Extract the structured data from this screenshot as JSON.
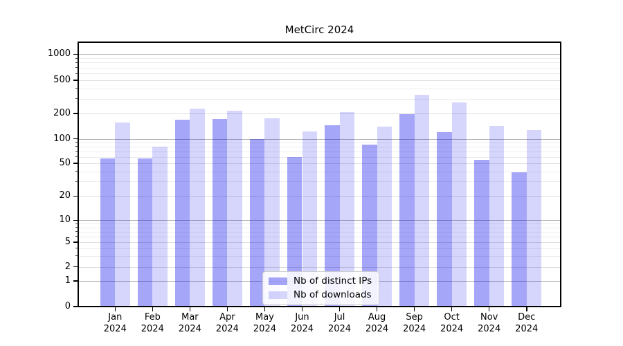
{
  "window": {
    "title": "MetCirc 2024"
  },
  "chart_data": {
    "type": "bar",
    "title": "MetCirc 2024",
    "categories": [
      "Jan 2024",
      "Feb 2024",
      "Mar 2024",
      "Apr 2024",
      "May 2024",
      "Jun 2024",
      "Jul 2024",
      "Aug 2024",
      "Sep 2024",
      "Oct 2024",
      "Nov 2024",
      "Dec 2024"
    ],
    "series": [
      {
        "name": "Nb of distinct IPs",
        "values": [
          57,
          57,
          170,
          173,
          100,
          60,
          145,
          85,
          198,
          120,
          55,
          39
        ],
        "color": "rgba(0,0,238,0.35)"
      },
      {
        "name": "Nb of downloads",
        "values": [
          155,
          80,
          230,
          215,
          175,
          122,
          207,
          140,
          335,
          270,
          143,
          127
        ],
        "color": "rgba(0,0,238,0.16)"
      }
    ],
    "xlabel": "",
    "ylabel": "",
    "yscale": "symlog",
    "yticks": [
      0,
      1,
      2,
      5,
      10,
      20,
      50,
      100,
      200,
      500,
      1000
    ],
    "ylim": [
      0,
      1400
    ],
    "grid": true,
    "legend_position": "lower center",
    "colors": {
      "bar_ips": "rgba(0,0,238,0.35)",
      "bar_downloads": "rgba(0,0,238,0.16)",
      "grid_major_decade": "#b3b3b3",
      "grid_major": "#dddddd",
      "grid_minor": "#ececec",
      "spine": "#000000",
      "background": "#ffffff"
    }
  }
}
